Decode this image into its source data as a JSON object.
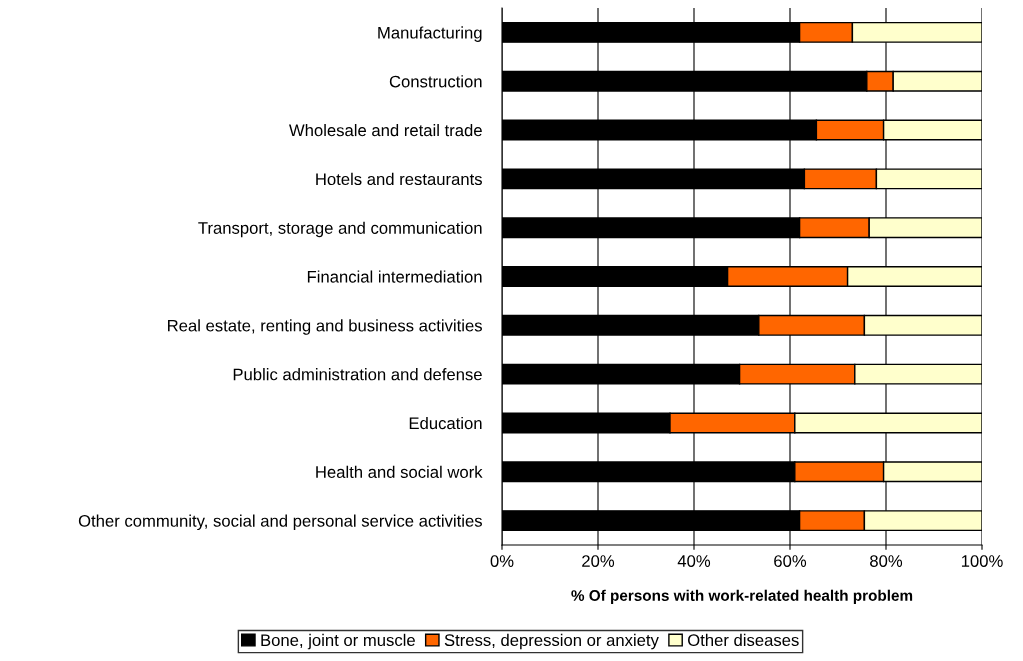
{
  "chart_data": {
    "type": "bar",
    "orientation": "horizontal",
    "stacked": true,
    "xlabel": "% Of persons with work-related health problem",
    "categories": [
      "Manufacturing",
      "Construction",
      "Wholesale and retail trade",
      "Hotels and restaurants",
      "Transport, storage and communication",
      "Financial intermediation",
      "Real estate, renting and business activities",
      "Public administration and defense",
      "Education",
      "Health and social work",
      "Other community, social and personal service activities"
    ],
    "series": [
      {
        "name": "Bone, joint or muscle",
        "color": "#000000",
        "values": [
          62,
          76,
          65.5,
          63,
          62,
          47,
          53.5,
          49.5,
          35,
          61,
          62
        ]
      },
      {
        "name": "Stress, depression or anxiety",
        "color": "#ff6600",
        "values": [
          11,
          5.5,
          14,
          15,
          14.5,
          25,
          22,
          24,
          26,
          18.5,
          13.5
        ]
      },
      {
        "name": "Other diseases",
        "color": "#ffffcc",
        "values": [
          27,
          18.5,
          20.5,
          22,
          23.5,
          28,
          24.5,
          26.5,
          39,
          20.5,
          24.5
        ]
      }
    ],
    "xlim": [
      0,
      100
    ],
    "xticks": [
      {
        "value": 0,
        "label": "0%"
      },
      {
        "value": 20,
        "label": "20%"
      },
      {
        "value": 40,
        "label": "40%"
      },
      {
        "value": 60,
        "label": "60%"
      },
      {
        "value": 80,
        "label": "80%"
      },
      {
        "value": 100,
        "label": "100%"
      }
    ],
    "grid": "x",
    "legend": "bottom"
  }
}
